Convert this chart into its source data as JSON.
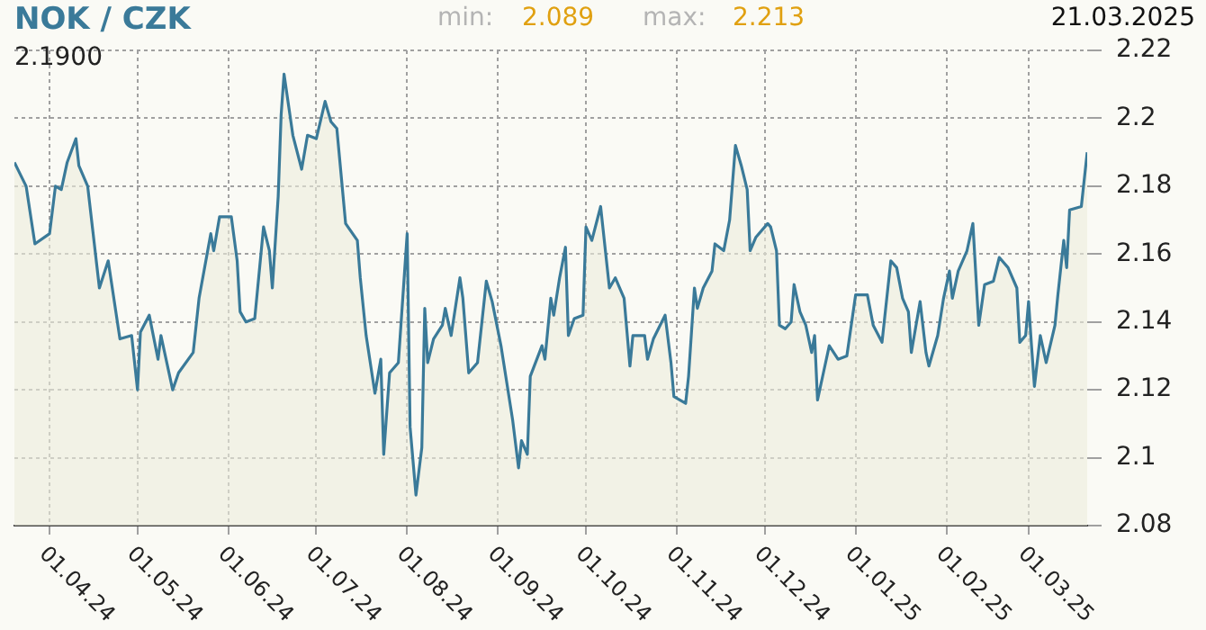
{
  "chart_data": {
    "type": "area",
    "title": "NOK / CZK",
    "annotations": [
      "min:",
      "2.089",
      "max:",
      "2.213",
      "21.03.2025",
      "2.1900"
    ],
    "x": [
      "2024-03-20",
      "2024-03-24",
      "2024-03-27",
      "2024-04-01",
      "2024-04-03",
      "2024-04-05",
      "2024-04-07",
      "2024-04-10",
      "2024-04-11",
      "2024-04-14",
      "2024-04-18",
      "2024-04-21",
      "2024-04-25",
      "2024-04-29",
      "2024-05-01",
      "2024-05-02",
      "2024-05-05",
      "2024-05-08",
      "2024-05-09",
      "2024-05-13",
      "2024-05-15",
      "2024-05-20",
      "2024-05-22",
      "2024-05-26",
      "2024-05-27",
      "2024-05-29",
      "2024-06-02",
      "2024-06-04",
      "2024-06-05",
      "2024-06-07",
      "2024-06-10",
      "2024-06-13",
      "2024-06-15",
      "2024-06-16",
      "2024-06-18",
      "2024-06-19",
      "2024-06-20",
      "2024-06-23",
      "2024-06-26",
      "2024-06-28",
      "2024-07-01",
      "2024-07-04",
      "2024-07-06",
      "2024-07-08",
      "2024-07-11",
      "2024-07-15",
      "2024-07-16",
      "2024-07-18",
      "2024-07-21",
      "2024-07-23",
      "2024-07-24",
      "2024-07-26",
      "2024-07-29",
      "2024-08-01",
      "2024-08-02",
      "2024-08-04",
      "2024-08-06",
      "2024-08-07",
      "2024-08-08",
      "2024-08-10",
      "2024-08-13",
      "2024-08-14",
      "2024-08-16",
      "2024-08-19",
      "2024-08-20",
      "2024-08-22",
      "2024-08-25",
      "2024-08-28",
      "2024-08-30",
      "2024-09-02",
      "2024-09-06",
      "2024-09-08",
      "2024-09-09",
      "2024-09-11",
      "2024-09-12",
      "2024-09-16",
      "2024-09-17",
      "2024-09-19",
      "2024-09-20",
      "2024-09-22",
      "2024-09-24",
      "2024-09-25",
      "2024-09-27",
      "2024-09-30",
      "2024-10-01",
      "2024-10-03",
      "2024-10-06",
      "2024-10-09",
      "2024-10-11",
      "2024-10-14",
      "2024-10-16",
      "2024-10-17",
      "2024-10-21",
      "2024-10-22",
      "2024-10-24",
      "2024-10-28",
      "2024-10-30",
      "2024-10-31",
      "2024-11-04",
      "2024-11-05",
      "2024-11-07",
      "2024-11-08",
      "2024-11-10",
      "2024-11-13",
      "2024-11-14",
      "2024-11-17",
      "2024-11-19",
      "2024-11-21",
      "2024-11-23",
      "2024-11-25",
      "2024-11-26",
      "2024-11-28",
      "2024-12-02",
      "2024-12-03",
      "2024-12-05",
      "2024-12-06",
      "2024-12-08",
      "2024-12-10",
      "2024-12-11",
      "2024-12-13",
      "2024-12-15",
      "2024-12-17",
      "2024-12-18",
      "2024-12-19",
      "2024-12-21",
      "2024-12-23",
      "2024-12-26",
      "2024-12-29",
      "2025-01-01",
      "2025-01-05",
      "2025-01-07",
      "2025-01-10",
      "2025-01-13",
      "2025-01-15",
      "2025-01-17",
      "2025-01-19",
      "2025-01-20",
      "2025-01-23",
      "2025-01-25",
      "2025-01-26",
      "2025-01-29",
      "2025-01-31",
      "2025-02-02",
      "2025-02-03",
      "2025-02-05",
      "2025-02-08",
      "2025-02-10",
      "2025-02-12",
      "2025-02-14",
      "2025-02-17",
      "2025-02-19",
      "2025-02-22",
      "2025-02-25",
      "2025-02-26",
      "2025-02-28",
      "2025-03-01",
      "2025-03-02",
      "2025-03-03",
      "2025-03-05",
      "2025-03-07",
      "2025-03-10",
      "2025-03-11",
      "2025-03-13",
      "2025-03-14",
      "2025-03-15",
      "2025-03-19",
      "2025-03-21"
    ],
    "values": [
      2.187,
      2.18,
      2.163,
      2.166,
      2.18,
      2.179,
      2.187,
      2.194,
      2.186,
      2.18,
      2.15,
      2.158,
      2.135,
      2.136,
      2.12,
      2.137,
      2.142,
      2.129,
      2.136,
      2.12,
      2.125,
      2.131,
      2.147,
      2.166,
      2.161,
      2.171,
      2.171,
      2.158,
      2.143,
      2.14,
      2.141,
      2.168,
      2.161,
      2.15,
      2.177,
      2.201,
      2.213,
      2.195,
      2.185,
      2.195,
      2.194,
      2.205,
      2.199,
      2.197,
      2.169,
      2.164,
      2.153,
      2.136,
      2.119,
      2.129,
      2.101,
      2.125,
      2.128,
      2.166,
      2.109,
      2.089,
      2.103,
      2.144,
      2.128,
      2.135,
      2.139,
      2.144,
      2.136,
      2.153,
      2.147,
      2.125,
      2.128,
      2.152,
      2.146,
      2.133,
      2.111,
      2.097,
      2.105,
      2.101,
      2.124,
      2.133,
      2.129,
      2.147,
      2.142,
      2.153,
      2.162,
      2.136,
      2.141,
      2.142,
      2.168,
      2.164,
      2.174,
      2.15,
      2.153,
      2.147,
      2.127,
      2.136,
      2.136,
      2.129,
      2.135,
      2.142,
      2.128,
      2.118,
      2.116,
      2.124,
      2.15,
      2.144,
      2.15,
      2.155,
      2.163,
      2.161,
      2.17,
      2.192,
      2.186,
      2.179,
      2.161,
      2.165,
      2.169,
      2.168,
      2.161,
      2.139,
      2.138,
      2.14,
      2.151,
      2.143,
      2.139,
      2.131,
      2.136,
      2.117,
      2.125,
      2.133,
      2.129,
      2.13,
      2.148,
      2.148,
      2.139,
      2.134,
      2.158,
      2.156,
      2.147,
      2.143,
      2.131,
      2.146,
      2.131,
      2.127,
      2.136,
      2.147,
      2.155,
      2.147,
      2.155,
      2.161,
      2.169,
      2.139,
      2.151,
      2.152,
      2.159,
      2.156,
      2.15,
      2.134,
      2.136,
      2.146,
      2.133,
      2.121,
      2.136,
      2.128,
      2.139,
      2.148,
      2.164,
      2.156,
      2.173,
      2.174,
      2.19
    ],
    "color": "#3a7a99",
    "xlim": [
      "2024-03-20",
      "2025-03-21"
    ],
    "xticks": [
      {
        "value": "2024-04-01",
        "label": "01.04.24"
      },
      {
        "value": "2024-05-01",
        "label": "01.05.24"
      },
      {
        "value": "2024-06-01",
        "label": "01.06.24"
      },
      {
        "value": "2024-07-01",
        "label": "01.07.24"
      },
      {
        "value": "2024-08-01",
        "label": "01.08.24"
      },
      {
        "value": "2024-09-01",
        "label": "01.09.24"
      },
      {
        "value": "2024-10-01",
        "label": "01.10.24"
      },
      {
        "value": "2024-11-01",
        "label": "01.11.24"
      },
      {
        "value": "2024-12-01",
        "label": "01.12.24"
      },
      {
        "value": "2025-01-01",
        "label": "01.01.25"
      },
      {
        "value": "2025-02-01",
        "label": "01.02.25"
      },
      {
        "value": "2025-03-01",
        "label": "01.03.25"
      }
    ],
    "ylim": [
      2.08,
      2.22
    ],
    "yticks": [
      2.08,
      2.1,
      2.12,
      2.14,
      2.16,
      2.18,
      2.2,
      2.22
    ],
    "grid": true,
    "marker": "none"
  }
}
